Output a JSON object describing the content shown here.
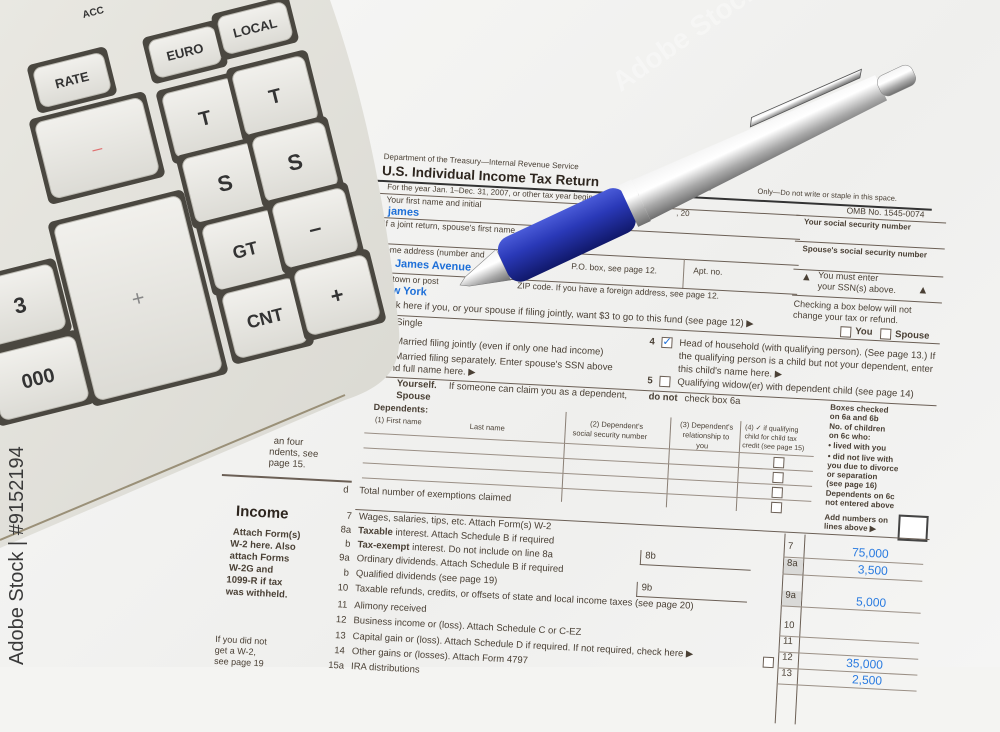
{
  "form": {
    "department": "Department of the Treasury—Internal Revenue Service",
    "title": "U.S. Individual Income Tax Return",
    "year": "2007",
    "tax_year_line": "For the year Jan. 1–Dec. 31, 2007, or other tax year beginning",
    "irs_use": "Only—Do not write or staple in this space.",
    "year_suffix": ", 20",
    "omb": "OMB No. 1545-0074",
    "first_name_label": "Your first name and initial",
    "first_name_value": "james",
    "joint_label": "If a joint return, spouse's first name",
    "home_address_label": "Home address (number and",
    "address_value": "t. James Avenue",
    "po_box": "P.O. box, see page 12.",
    "apt_no": "Apt. no.",
    "town_label": "town or post",
    "zip_label": "ZIP code. If you have a foreign address, see page 12.",
    "city_value": "w York",
    "ssn_label": "Your social security number",
    "spouse_ssn_label": "Spouse's social security number",
    "must_enter_1": "You must enter",
    "must_enter_2": "your SSN(s) above.",
    "checking_1": "Checking a box below will not",
    "checking_2": "change your tax or refund.",
    "you": "You",
    "spouse": "Spouse",
    "fund_line": "ck here if you, or your spouse if filing jointly, want $3 to go to this fund (see page 12) ▶",
    "filing": {
      "single": "Single",
      "mfj": "Married filing jointly (even if only one had income)",
      "mfs": "Married filing separately. Enter spouse's SSN above",
      "mfs2": "nd full name here. ▶",
      "hoh_num": "4",
      "hoh": "Head of household (with qualifying person). (See page 13.) If",
      "hoh2": "the qualifying person is a child but not your dependent, enter",
      "hoh3": "this child's name here. ▶",
      "qw_num": "5",
      "qw": "Qualifying widow(er) with dependent child (see page 14)",
      "hoh_checked": true
    },
    "exemptions": {
      "yourself": "Yourself.",
      "yourself_rest": "If someone can claim you as a dependent,",
      "do_not": "do not",
      "check_6a": "check box 6a",
      "spouse": "Spouse",
      "dependents": "Dependents:",
      "col1": "(1) First name",
      "col1b": "Last name",
      "col2a": "(2) Dependent's",
      "col2b": "social security number",
      "col3a": "(3) Dependent's",
      "col3b": "relationship to",
      "col3c": "you",
      "col4a": "(4) ✓ if qualifying",
      "col4b": "child for child tax",
      "col4c": "credit (see page 15)",
      "more_1": "an four",
      "more_2": "ndents, see",
      "more_3": "page 15.",
      "total": "Total number of exemptions claimed",
      "total_letter": "d",
      "side": [
        "Boxes checked",
        "on 6a and 6b",
        "No. of children",
        "on 6c who:",
        "• lived with you",
        "• did not live with",
        "you due to divorce",
        "or separation",
        "(see page 16)",
        "Dependents on 6c",
        "not entered above"
      ],
      "add_1": "Add numbers on",
      "add_2": "lines above ▶"
    },
    "income": {
      "heading": "Income",
      "attach": [
        "Attach Form(s)",
        "W-2 here. Also",
        "attach Forms",
        "W-2G and",
        "1099-R if tax",
        "was withheld."
      ],
      "no_w2": [
        "If you did not",
        "get a W-2,",
        "see page 19"
      ],
      "lines": [
        {
          "num": "7",
          "bold": "",
          "text": "Wages, salaries, tips, etc. Attach Form(s) W-2"
        },
        {
          "num": "8a",
          "bold": "Taxable",
          "text": " interest. Attach Schedule B if required"
        },
        {
          "num": "b",
          "bold": "Tax-exempt",
          "text": " interest. Do not include on line 8a"
        },
        {
          "num": "9a",
          "bold": "",
          "text": "Ordinary dividends. Attach Schedule B if required"
        },
        {
          "num": "b",
          "bold": "",
          "text": "Qualified dividends (see page 19)"
        },
        {
          "num": "10",
          "bold": "",
          "text": "Taxable refunds, credits, or offsets of state and local income taxes (see page 20)"
        },
        {
          "num": "11",
          "bold": "",
          "text": "Alimony received"
        },
        {
          "num": "12",
          "bold": "",
          "text": "Business income or (loss). Attach Schedule C or C-EZ"
        },
        {
          "num": "13",
          "bold": "",
          "text": "Capital gain or (loss). Attach Schedule D if required. If not required, check here ▶"
        },
        {
          "num": "14",
          "bold": "",
          "text": "Other gains or (losses). Attach Form 4797"
        },
        {
          "num": "15a",
          "bold": "",
          "text": "IRA distributions"
        }
      ],
      "box_8b": "8b",
      "box_9b": "9b",
      "amounts": [
        {
          "line": "7",
          "value": "75,000"
        },
        {
          "line": "8a",
          "value": "3,500"
        },
        {
          "line": "9a",
          "value": "5,000"
        },
        {
          "line": "10",
          "value": ""
        },
        {
          "line": "11",
          "value": ""
        },
        {
          "line": "12",
          "value": "35,000"
        },
        {
          "line": "13",
          "value": "2,500"
        }
      ]
    }
  },
  "calculator": {
    "keys": [
      "ACC",
      "EURO",
      "LOCAL",
      "RATE",
      "–",
      "T",
      "T",
      "S",
      "S",
      "GT",
      "–",
      "CNT",
      "+",
      "+",
      "3",
      "000"
    ],
    "body_color": "#e6e5df",
    "key_color": "#ecebe6"
  },
  "pen": {
    "grip_color": "#2130a8",
    "barrel_color": "#c9c9c9"
  },
  "watermark": {
    "side_text": "Adobe Stock | #9152194",
    "overlay_text": "Adobe Stock"
  },
  "colors": {
    "filled_value": "#1d6fd8",
    "form_text": "#4a4035"
  }
}
